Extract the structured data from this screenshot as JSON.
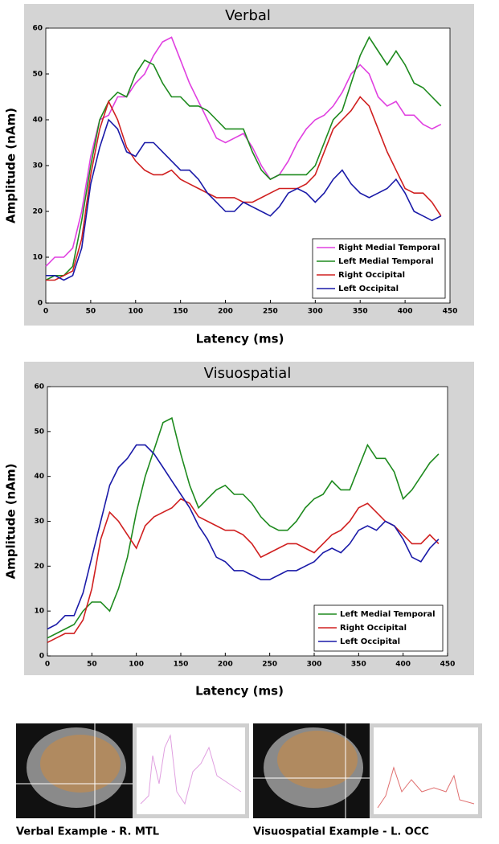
{
  "chart_data": [
    {
      "type": "line",
      "title": "Verbal",
      "xlabel": "Latency (ms)",
      "ylabel": "Amplitude (nAm)",
      "xlim": [
        0,
        450
      ],
      "ylim": [
        0,
        60
      ],
      "xticks": [
        0,
        50,
        100,
        150,
        200,
        250,
        300,
        350,
        400,
        450
      ],
      "yticks": [
        0,
        10,
        20,
        30,
        40,
        50,
        60
      ],
      "grid": false,
      "legend": "lower right",
      "x": [
        0,
        10,
        20,
        30,
        40,
        50,
        60,
        70,
        80,
        90,
        100,
        110,
        120,
        130,
        140,
        150,
        160,
        170,
        180,
        190,
        200,
        210,
        220,
        230,
        240,
        250,
        260,
        270,
        280,
        290,
        300,
        310,
        320,
        330,
        340,
        350,
        360,
        370,
        380,
        390,
        400,
        410,
        420,
        430,
        440
      ],
      "series": [
        {
          "name": "Right Medial Temporal",
          "color": "#e040e0",
          "values": [
            8,
            10,
            10,
            12,
            20,
            32,
            40,
            41,
            45,
            45,
            48,
            50,
            54,
            57,
            58,
            53,
            48,
            44,
            40,
            36,
            35,
            36,
            37,
            34,
            30,
            27,
            28,
            31,
            35,
            38,
            40,
            41,
            43,
            46,
            50,
            52,
            50,
            45,
            43,
            44,
            41,
            41,
            39,
            38,
            39
          ]
        },
        {
          "name": "Left Medial Temporal",
          "color": "#1e8a1e",
          "values": [
            5,
            6,
            6,
            8,
            18,
            30,
            40,
            44,
            46,
            45,
            50,
            53,
            52,
            48,
            45,
            45,
            43,
            43,
            42,
            40,
            38,
            38,
            38,
            33,
            29,
            27,
            28,
            28,
            28,
            28,
            30,
            35,
            40,
            42,
            48,
            54,
            58,
            55,
            52,
            55,
            52,
            48,
            47,
            45,
            43
          ]
        },
        {
          "name": "Right Occipital",
          "color": "#d02020",
          "values": [
            5,
            5,
            6,
            7,
            14,
            28,
            38,
            44,
            40,
            34,
            31,
            29,
            28,
            28,
            29,
            27,
            26,
            25,
            24,
            23,
            23,
            23,
            22,
            22,
            23,
            24,
            25,
            25,
            25,
            26,
            28,
            33,
            38,
            40,
            42,
            45,
            43,
            38,
            33,
            29,
            25,
            24,
            24,
            22,
            19
          ]
        },
        {
          "name": "Left Occipital",
          "color": "#1a1aa8",
          "values": [
            6,
            6,
            5,
            6,
            12,
            26,
            34,
            40,
            38,
            33,
            32,
            35,
            35,
            33,
            31,
            29,
            29,
            27,
            24,
            22,
            20,
            20,
            22,
            21,
            20,
            19,
            21,
            24,
            25,
            24,
            22,
            24,
            27,
            29,
            26,
            24,
            23,
            24,
            25,
            27,
            24,
            20,
            19,
            18,
            19
          ]
        }
      ]
    },
    {
      "type": "line",
      "title": "Visuospatial",
      "xlabel": "Latency (ms)",
      "ylabel": "Amplitude (nAm)",
      "xlim": [
        0,
        450
      ],
      "ylim": [
        0,
        60
      ],
      "xticks": [
        0,
        50,
        100,
        150,
        200,
        250,
        300,
        350,
        400,
        450
      ],
      "yticks": [
        0,
        10,
        20,
        30,
        40,
        50,
        60
      ],
      "grid": false,
      "legend": "lower right",
      "x": [
        0,
        10,
        20,
        30,
        40,
        50,
        60,
        70,
        80,
        90,
        100,
        110,
        120,
        130,
        140,
        150,
        160,
        170,
        180,
        190,
        200,
        210,
        220,
        230,
        240,
        250,
        260,
        270,
        280,
        290,
        300,
        310,
        320,
        330,
        340,
        350,
        360,
        370,
        380,
        390,
        400,
        410,
        420,
        430,
        440
      ],
      "series": [
        {
          "name": "Left Medial Temporal",
          "color": "#1e8a1e",
          "values": [
            4,
            5,
            6,
            7,
            10,
            12,
            12,
            10,
            15,
            22,
            32,
            40,
            46,
            52,
            53,
            45,
            38,
            33,
            35,
            37,
            38,
            36,
            36,
            34,
            31,
            29,
            28,
            28,
            30,
            33,
            35,
            36,
            39,
            37,
            37,
            42,
            47,
            44,
            44,
            41,
            35,
            37,
            40,
            43,
            45
          ]
        },
        {
          "name": "Right Occipital",
          "color": "#d02020",
          "values": [
            3,
            4,
            5,
            5,
            8,
            15,
            26,
            32,
            30,
            27,
            24,
            29,
            31,
            32,
            33,
            35,
            34,
            31,
            30,
            29,
            28,
            28,
            27,
            25,
            22,
            23,
            24,
            25,
            25,
            24,
            23,
            25,
            27,
            28,
            30,
            33,
            34,
            32,
            30,
            29,
            27,
            25,
            25,
            27,
            25
          ]
        },
        {
          "name": "Left Occipital",
          "color": "#1a1aa8",
          "values": [
            6,
            7,
            9,
            9,
            14,
            22,
            30,
            38,
            42,
            44,
            47,
            47,
            45,
            42,
            39,
            36,
            33,
            29,
            26,
            22,
            21,
            19,
            19,
            18,
            17,
            17,
            18,
            19,
            19,
            20,
            21,
            23,
            24,
            23,
            25,
            28,
            29,
            28,
            30,
            29,
            26,
            22,
            21,
            24,
            26
          ]
        }
      ]
    }
  ],
  "examples": [
    "Verbal Example - R. MTL",
    "Visuospatial Example - L. OCC"
  ]
}
